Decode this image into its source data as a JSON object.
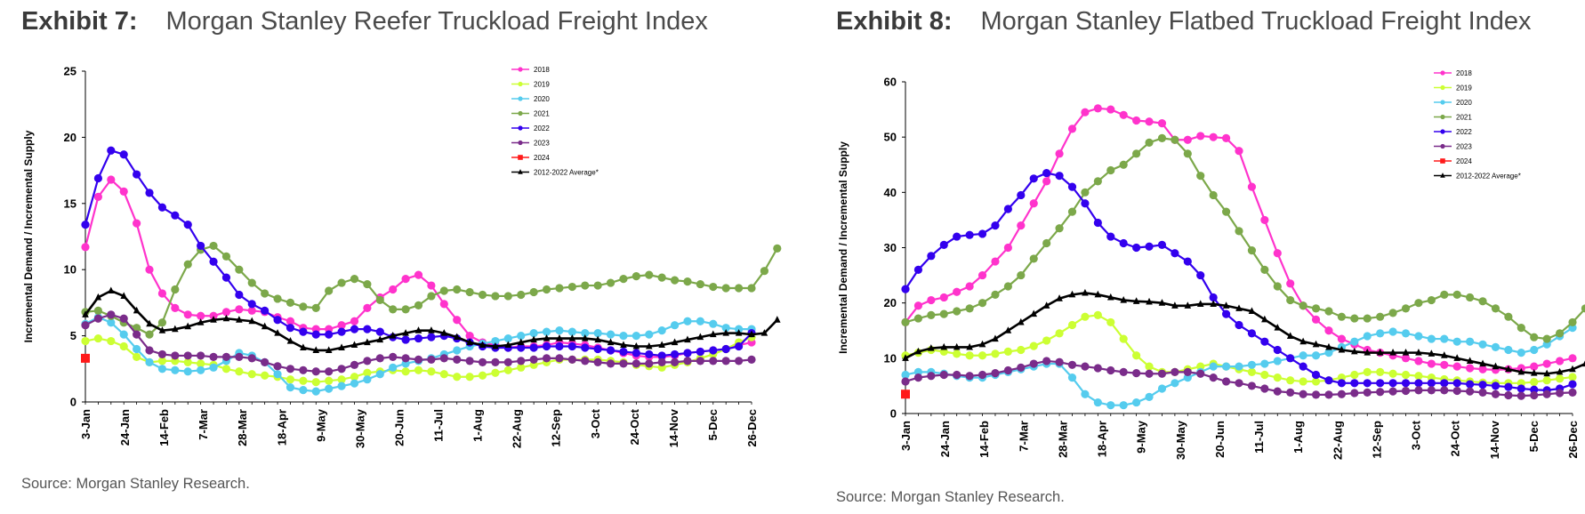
{
  "exhibits": [
    {
      "number": "Exhibit 7:",
      "title": "Morgan Stanley Reefer Truckload Freight Index",
      "source": "Source: Morgan Stanley Research."
    },
    {
      "number": "Exhibit 8:",
      "title": "Morgan Stanley Flatbed Truckload Freight Index",
      "source": "Source: Morgan Stanley Research."
    }
  ],
  "chart_data": [
    {
      "type": "line",
      "title": "Morgan Stanley Reefer Truckload Freight Index",
      "xlabel": "",
      "ylabel": "Incremental Demand / Incremental Supply",
      "ylim": [
        0,
        25
      ],
      "yticks": [
        0,
        5,
        10,
        15,
        20,
        25
      ],
      "x_tick_labels": [
        "3-Jan",
        "24-Jan",
        "14-Feb",
        "7-Mar",
        "28-Mar",
        "18-Apr",
        "9-May",
        "30-May",
        "20-Jun",
        "11-Jul",
        "1-Aug",
        "22-Aug",
        "12-Sep",
        "3-Oct",
        "24-Oct",
        "14-Nov",
        "5-Dec",
        "26-Dec"
      ],
      "grid": false,
      "legend_position": "top-right",
      "series": [
        {
          "name": "2018",
          "color": "#ff33cc",
          "marker": "circle",
          "values": [
            11.7,
            15.5,
            16.8,
            15.9,
            13.5,
            10,
            8.2,
            7.1,
            6.6,
            6.5,
            6.5,
            6.8,
            7,
            6.9,
            6.8,
            6.4,
            6.1,
            5.6,
            5.5,
            5.5,
            5.8,
            6.1,
            7.1,
            7.9,
            8.5,
            9.3,
            9.6,
            8.8,
            7.4,
            6.2,
            5,
            4.5,
            4.3,
            4.1,
            4.2,
            4.2,
            4.3,
            4.5,
            4.4,
            4.3,
            4.1,
            3.9,
            3.7,
            3.5,
            3.4,
            3.4,
            3.5,
            3.7,
            3.8,
            3.9,
            4,
            4.3,
            4.5
          ]
        },
        {
          "name": "2019",
          "color": "#ccff33",
          "marker": "circle",
          "values": [
            4.6,
            4.8,
            4.6,
            4.2,
            3.4,
            3,
            3.1,
            3.1,
            3,
            2.9,
            2.8,
            2.5,
            2.3,
            2.1,
            2,
            1.9,
            1.7,
            1.6,
            1.5,
            1.6,
            1.7,
            1.9,
            2.2,
            2.3,
            2.4,
            2.3,
            2.4,
            2.3,
            2.1,
            1.9,
            1.9,
            2,
            2.2,
            2.4,
            2.6,
            2.8,
            3,
            3.2,
            3.2,
            3.2,
            3.2,
            3.1,
            3,
            2.8,
            2.7,
            2.6,
            2.8,
            3,
            3.3,
            3.6,
            4,
            4.5,
            4.9
          ]
        },
        {
          "name": "2020",
          "color": "#55ccee",
          "marker": "circle",
          "values": [
            5.9,
            6.4,
            6,
            5.1,
            4,
            3,
            2.5,
            2.4,
            2.3,
            2.4,
            2.6,
            3.1,
            3.7,
            3.5,
            3,
            2.1,
            1.1,
            0.9,
            0.8,
            1,
            1.2,
            1.4,
            1.7,
            2.1,
            2.6,
            2.9,
            3.1,
            3.3,
            3.6,
            3.9,
            4.2,
            4.4,
            4.6,
            4.8,
            5,
            5.2,
            5.3,
            5.4,
            5.3,
            5.2,
            5.2,
            5.1,
            5,
            5,
            5.1,
            5.4,
            5.8,
            6.1,
            6.1,
            5.9,
            5.6,
            5.5,
            5.5
          ]
        },
        {
          "name": "2021",
          "color": "#7ca84a",
          "marker": "circle",
          "values": [
            6.8,
            6.9,
            6.5,
            6,
            5.6,
            5.1,
            6,
            8.5,
            10.4,
            11.5,
            11.8,
            11,
            10,
            9,
            8.2,
            7.8,
            7.5,
            7.2,
            7.1,
            8.4,
            9,
            9.3,
            8.9,
            7.7,
            7,
            7,
            7.3,
            8,
            8.4,
            8.5,
            8.3,
            8.1,
            8,
            8,
            8.1,
            8.3,
            8.5,
            8.6,
            8.7,
            8.8,
            8.8,
            9,
            9.3,
            9.5,
            9.6,
            9.4,
            9.2,
            9.1,
            8.9,
            8.7,
            8.6,
            8.6,
            8.6,
            9.9,
            11.6
          ]
        },
        {
          "name": "2022",
          "color": "#3300ee",
          "marker": "circle",
          "values": [
            13.4,
            16.9,
            19,
            18.7,
            17.2,
            15.8,
            14.7,
            14.1,
            13.4,
            11.8,
            10.6,
            9.4,
            8.1,
            7.4,
            6.9,
            6.2,
            5.6,
            5.3,
            5.1,
            5.1,
            5.3,
            5.5,
            5.5,
            5.3,
            4.9,
            4.7,
            4.8,
            4.9,
            5,
            4.8,
            4.5,
            4.2,
            4.1,
            4.1,
            4.1,
            4.1,
            4.2,
            4.2,
            4.2,
            4.1,
            4,
            3.9,
            3.8,
            3.7,
            3.6,
            3.5,
            3.6,
            3.7,
            3.8,
            3.9,
            4,
            4.2,
            5.2
          ]
        },
        {
          "name": "2023",
          "color": "#7a2c8a",
          "marker": "circle",
          "values": [
            5.8,
            6.3,
            6.6,
            6.3,
            5.1,
            3.9,
            3.6,
            3.5,
            3.5,
            3.5,
            3.4,
            3.4,
            3.4,
            3.3,
            3,
            2.7,
            2.5,
            2.4,
            2.3,
            2.3,
            2.5,
            2.8,
            3.1,
            3.3,
            3.4,
            3.3,
            3.2,
            3.2,
            3.3,
            3.2,
            3.1,
            3,
            3,
            3,
            3.1,
            3.2,
            3.3,
            3.3,
            3.2,
            3.1,
            3,
            2.9,
            2.9,
            2.9,
            2.9,
            3,
            3,
            3.1,
            3.1,
            3.1,
            3.1,
            3.1,
            3.2
          ]
        },
        {
          "name": "2024",
          "color": "#ff1a1a",
          "marker": "square",
          "values": [
            3.3
          ]
        },
        {
          "name": "2012-2022 Average*",
          "color": "#000000",
          "marker": "triangle",
          "values": [
            6.6,
            7.9,
            8.4,
            8,
            6.9,
            5.9,
            5.4,
            5.5,
            5.7,
            6,
            6.2,
            6.3,
            6.2,
            6.1,
            5.7,
            5.2,
            4.6,
            4.1,
            3.9,
            3.9,
            4.1,
            4.3,
            4.5,
            4.7,
            5,
            5.2,
            5.4,
            5.4,
            5.2,
            4.9,
            4.5,
            4.3,
            4.2,
            4.3,
            4.5,
            4.7,
            4.8,
            4.8,
            4.8,
            4.8,
            4.7,
            4.5,
            4.3,
            4.2,
            4.2,
            4.3,
            4.5,
            4.7,
            4.9,
            5.1,
            5.2,
            5.2,
            5.1,
            5.2,
            6.2
          ]
        }
      ]
    },
    {
      "type": "line",
      "title": "Morgan Stanley Flatbed Truckload Freight Index",
      "xlabel": "",
      "ylabel": "Incremental Demand / Incremental Supply",
      "ylim": [
        0,
        60
      ],
      "yticks": [
        0,
        10,
        20,
        30,
        40,
        50,
        60
      ],
      "x_tick_labels": [
        "3-Jan",
        "24-Jan",
        "14-Feb",
        "7-Mar",
        "28-Mar",
        "18-Apr",
        "9-May",
        "30-May",
        "20-Jun",
        "11-Jul",
        "1-Aug",
        "22-Aug",
        "12-Sep",
        "3-Oct",
        "24-Oct",
        "14-Nov",
        "5-Dec",
        "26-Dec"
      ],
      "grid": false,
      "legend_position": "top-right",
      "series": [
        {
          "name": "2018",
          "color": "#ff33cc",
          "marker": "circle",
          "values": [
            16.5,
            19.5,
            20.5,
            21,
            22,
            23,
            25,
            27.5,
            30,
            34,
            38,
            42,
            47,
            51.5,
            54.5,
            55.2,
            55,
            54,
            53,
            52.8,
            52.5,
            49.5,
            49.5,
            50.2,
            50,
            49.8,
            47.5,
            41,
            35,
            29,
            23.5,
            19.5,
            17,
            15,
            13.5,
            12.5,
            11.5,
            11,
            10.5,
            10,
            9.5,
            9,
            8.8,
            8.5,
            8.2,
            8,
            7.9,
            8,
            8.2,
            8.5,
            9,
            9.5,
            10
          ]
        },
        {
          "name": "2019",
          "color": "#ccff33",
          "marker": "circle",
          "values": [
            10.5,
            11,
            11.5,
            11.2,
            10.8,
            10.5,
            10.5,
            10.8,
            11.2,
            11.5,
            12.2,
            13.2,
            14.5,
            16,
            17.5,
            17.8,
            16.5,
            13.5,
            10.5,
            8.5,
            7.5,
            7.5,
            8,
            8.5,
            9,
            8.5,
            8,
            7.5,
            7,
            6.5,
            6,
            5.8,
            5.8,
            6,
            6.5,
            7,
            7.5,
            7.5,
            7.2,
            7,
            6.8,
            6.5,
            6.2,
            6,
            5.8,
            5.6,
            5.5,
            5.5,
            5.5,
            5.7,
            6,
            6.3,
            6.6
          ]
        },
        {
          "name": "2020",
          "color": "#55ccee",
          "marker": "circle",
          "values": [
            7,
            7.5,
            7.5,
            7.2,
            6.8,
            6.5,
            6.5,
            7,
            7.5,
            8,
            8.5,
            9,
            9,
            6.5,
            3.5,
            2,
            1.5,
            1.5,
            2,
            3,
            4.5,
            5.5,
            6.5,
            7.5,
            8.5,
            8.5,
            8.5,
            8.8,
            9,
            9.5,
            10,
            10.5,
            10.5,
            11,
            12,
            13,
            14,
            14.5,
            14.8,
            14.5,
            14,
            13.5,
            13.5,
            13,
            13,
            12.5,
            12,
            11.5,
            11,
            11.5,
            12.5,
            14,
            15.5
          ]
        },
        {
          "name": "2021",
          "color": "#7ca84a",
          "marker": "circle",
          "values": [
            16.5,
            17.2,
            17.8,
            18,
            18.5,
            19,
            20,
            21.5,
            23,
            25,
            28,
            30.8,
            33.5,
            36.5,
            40,
            42,
            44,
            45,
            47,
            49,
            49.8,
            49.5,
            47,
            43,
            39.5,
            36.5,
            33,
            29.5,
            26,
            23,
            20.5,
            19.5,
            19,
            18.5,
            17.5,
            17.2,
            17.2,
            17.5,
            18.2,
            19,
            20,
            20.5,
            21.5,
            21.5,
            21,
            20.3,
            19,
            17.5,
            15.5,
            13.8,
            13.5,
            14.5,
            16.5,
            19,
            20.5
          ]
        },
        {
          "name": "2022",
          "color": "#3300ee",
          "marker": "circle",
          "values": [
            22.5,
            26,
            28.5,
            30.5,
            32,
            32.3,
            32.5,
            34,
            37,
            39.5,
            42.5,
            43.5,
            43,
            41,
            38,
            34.5,
            32,
            30.8,
            30,
            30.2,
            30.5,
            29,
            27.5,
            25,
            21,
            18,
            16,
            14.5,
            13,
            11.5,
            10,
            8.5,
            7,
            6,
            5.5,
            5.5,
            5.5,
            5.5,
            5.5,
            5.5,
            5.5,
            5.5,
            5.5,
            5.5,
            5.3,
            5.2,
            5,
            4.8,
            4.5,
            4.3,
            4.2,
            4.5,
            5.3
          ]
        },
        {
          "name": "2023",
          "color": "#7a2c8a",
          "marker": "circle",
          "values": [
            5.8,
            6.5,
            6.8,
            7,
            7,
            6.8,
            7,
            7.3,
            7.8,
            8.3,
            9,
            9.5,
            9.3,
            8.8,
            8.5,
            8.2,
            7.8,
            7.5,
            7.3,
            7.2,
            7.2,
            7.5,
            7.5,
            7.2,
            6.5,
            5.8,
            5.5,
            5,
            4.5,
            4,
            3.8,
            3.5,
            3.4,
            3.4,
            3.5,
            3.7,
            3.8,
            3.9,
            4,
            4.1,
            4.2,
            4.2,
            4.2,
            4.1,
            4,
            3.8,
            3.5,
            3.3,
            3.2,
            3.3,
            3.5,
            3.7,
            3.8
          ]
        },
        {
          "name": "2024",
          "color": "#ff1a1a",
          "marker": "square",
          "values": [
            3.5
          ]
        },
        {
          "name": "2012-2022 Average*",
          "color": "#000000",
          "marker": "triangle",
          "values": [
            10,
            11.2,
            11.8,
            12,
            12,
            12,
            12.5,
            13.5,
            15,
            16.5,
            18,
            19.5,
            20.8,
            21.5,
            21.8,
            21.5,
            21,
            20.5,
            20.3,
            20.2,
            20,
            19.5,
            19.5,
            19.8,
            19.8,
            19.5,
            19,
            18.5,
            17,
            15.5,
            14,
            13,
            12.5,
            12,
            11.5,
            11.2,
            11,
            11,
            11,
            11,
            11,
            10.8,
            10.5,
            10,
            9.5,
            9,
            8.5,
            8,
            7.5,
            7.3,
            7.2,
            7.5,
            8,
            9,
            10
          ]
        }
      ]
    }
  ]
}
